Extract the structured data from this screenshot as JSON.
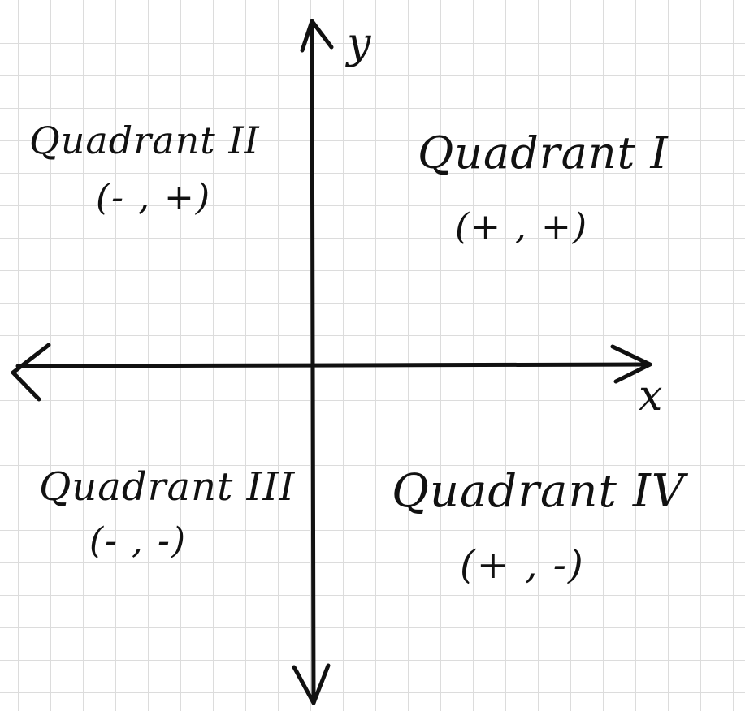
{
  "diagram": {
    "axes": {
      "x_label": "x",
      "y_label": "y"
    },
    "quadrants": [
      {
        "name": "Quadrant I",
        "signs": "(+ , +)"
      },
      {
        "name": "Quadrant II",
        "signs": "(- , +)"
      },
      {
        "name": "Quadrant III",
        "signs": "(- , -)"
      },
      {
        "name": "Quadrant IV",
        "signs": "(+ , -)"
      }
    ],
    "colors": {
      "ink": "#111111",
      "grid": "#dcdcdc",
      "background": "#ffffff"
    }
  }
}
